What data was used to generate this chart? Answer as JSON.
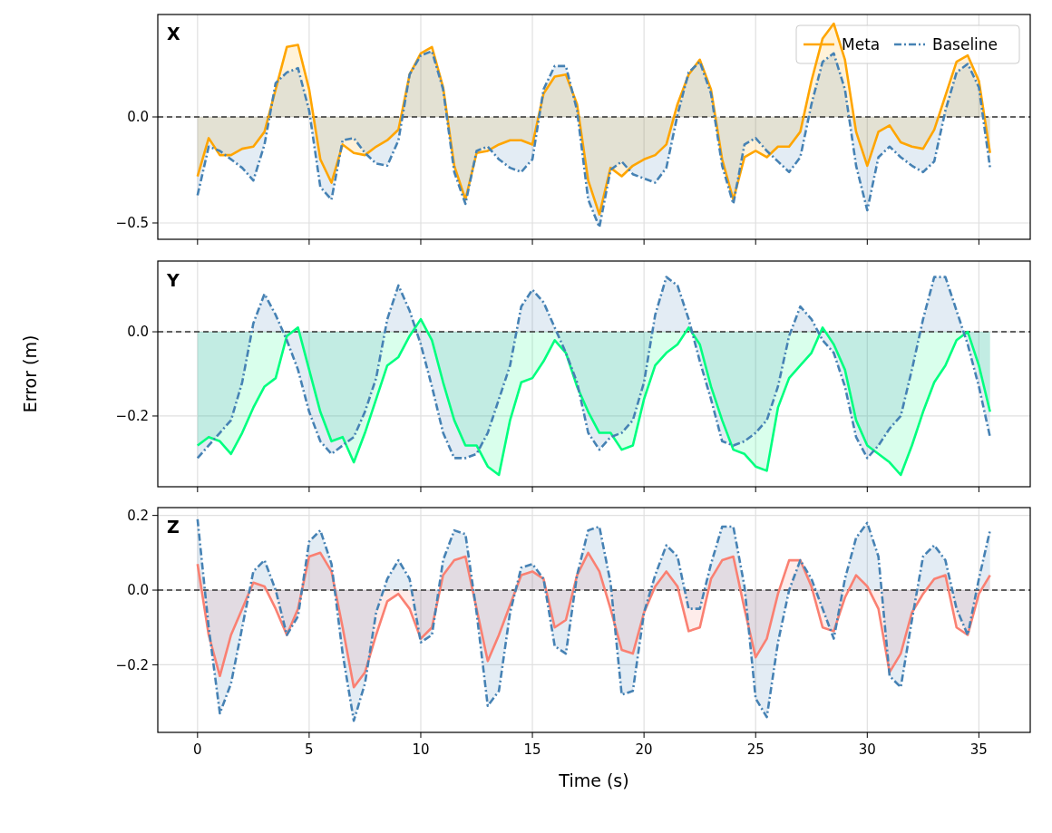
{
  "chart_data": [
    {
      "type": "area",
      "title": "X",
      "x": [
        0,
        0.5,
        1,
        1.5,
        2,
        2.5,
        3,
        3.5,
        4,
        4.5,
        5,
        5.5,
        6,
        6.5,
        7,
        7.5,
        8,
        8.5,
        9,
        9.5,
        10,
        10.5,
        11,
        11.5,
        12,
        12.5,
        13,
        13.5,
        14,
        14.5,
        15,
        15.5,
        16,
        16.5,
        17,
        17.5,
        18,
        18.5,
        19,
        19.5,
        20,
        20.5,
        21,
        21.5,
        22,
        22.5,
        23,
        23.5,
        24,
        24.5,
        25,
        25.5,
        26,
        26.5,
        27,
        27.5,
        28,
        28.5,
        29,
        29.5,
        30,
        30.5,
        31,
        31.5,
        32,
        32.5,
        33,
        33.5,
        34,
        34.5,
        35,
        35.5
      ],
      "series": [
        {
          "name": "Meta",
          "color": "#ffa500",
          "line_style": "solid",
          "values": [
            -0.28,
            -0.1,
            -0.18,
            -0.18,
            -0.15,
            -0.14,
            -0.07,
            0.13,
            0.33,
            0.34,
            0.13,
            -0.2,
            -0.31,
            -0.13,
            -0.17,
            -0.18,
            -0.14,
            -0.11,
            -0.06,
            0.2,
            0.3,
            0.33,
            0.14,
            -0.23,
            -0.39,
            -0.17,
            -0.16,
            -0.13,
            -0.11,
            -0.11,
            -0.13,
            0.11,
            0.19,
            0.2,
            0.06,
            -0.3,
            -0.46,
            -0.24,
            -0.28,
            -0.23,
            -0.2,
            -0.18,
            -0.13,
            0.06,
            0.2,
            0.27,
            0.13,
            -0.2,
            -0.39,
            -0.19,
            -0.16,
            -0.19,
            -0.14,
            -0.14,
            -0.07,
            0.17,
            0.37,
            0.44,
            0.27,
            -0.07,
            -0.23,
            -0.07,
            -0.04,
            -0.12,
            -0.14,
            -0.15,
            -0.06,
            0.1,
            0.26,
            0.29,
            0.17,
            -0.17
          ]
        },
        {
          "name": "Baseline",
          "color": "#4682b4",
          "line_style": "dashdot",
          "values": [
            -0.37,
            -0.14,
            -0.16,
            -0.2,
            -0.24,
            -0.3,
            -0.13,
            0.16,
            0.21,
            0.23,
            0.03,
            -0.33,
            -0.39,
            -0.11,
            -0.1,
            -0.17,
            -0.22,
            -0.23,
            -0.11,
            0.2,
            0.29,
            0.31,
            0.13,
            -0.26,
            -0.41,
            -0.16,
            -0.14,
            -0.2,
            -0.24,
            -0.26,
            -0.2,
            0.13,
            0.24,
            0.24,
            0.03,
            -0.39,
            -0.52,
            -0.25,
            -0.21,
            -0.27,
            -0.29,
            -0.31,
            -0.24,
            0.01,
            0.21,
            0.26,
            0.11,
            -0.23,
            -0.41,
            -0.13,
            -0.1,
            -0.16,
            -0.21,
            -0.26,
            -0.19,
            0.06,
            0.26,
            0.3,
            0.13,
            -0.23,
            -0.44,
            -0.19,
            -0.14,
            -0.19,
            -0.23,
            -0.26,
            -0.21,
            0.03,
            0.21,
            0.25,
            0.14,
            -0.24
          ]
        }
      ],
      "xlim": [
        -1.78,
        37.3
      ],
      "xticks": [
        0,
        5,
        10,
        15,
        20,
        25,
        30,
        35
      ],
      "ylim": [
        -0.577,
        0.483
      ],
      "yticks": [
        {
          "value": 0,
          "label": "0.0"
        },
        {
          "value": -0.5,
          "label": "−0.5"
        }
      ],
      "tick_labels": "y",
      "grid": true,
      "legend": "top right",
      "ref_lines": [
        {
          "axis": "y",
          "value": 0,
          "color": "#333333",
          "line_style": "dashed"
        }
      ]
    },
    {
      "type": "area",
      "title": "Y",
      "ylabel": "Error (m)",
      "x": [
        0,
        0.5,
        1,
        1.5,
        2,
        2.5,
        3,
        3.5,
        4,
        4.5,
        5,
        5.5,
        6,
        6.5,
        7,
        7.5,
        8,
        8.5,
        9,
        9.5,
        10,
        10.5,
        11,
        11.5,
        12,
        12.5,
        13,
        13.5,
        14,
        14.5,
        15,
        15.5,
        16,
        16.5,
        17,
        17.5,
        18,
        18.5,
        19,
        19.5,
        20,
        20.5,
        21,
        21.5,
        22,
        22.5,
        23,
        23.5,
        24,
        24.5,
        25,
        25.5,
        26,
        26.5,
        27,
        27.5,
        28,
        28.5,
        29,
        29.5,
        30,
        30.5,
        31,
        31.5,
        32,
        32.5,
        33,
        33.5,
        34,
        34.5,
        35,
        35.5
      ],
      "series": [
        {
          "color": "#00ff7f",
          "line_style": "solid",
          "values": [
            -0.27,
            -0.25,
            -0.26,
            -0.29,
            -0.24,
            -0.18,
            -0.13,
            -0.11,
            -0.01,
            0.01,
            -0.09,
            -0.19,
            -0.26,
            -0.25,
            -0.31,
            -0.24,
            -0.16,
            -0.08,
            -0.06,
            -0.01,
            0.03,
            -0.02,
            -0.12,
            -0.21,
            -0.27,
            -0.27,
            -0.32,
            -0.34,
            -0.21,
            -0.12,
            -0.11,
            -0.07,
            -0.02,
            -0.05,
            -0.13,
            -0.19,
            -0.24,
            -0.24,
            -0.28,
            -0.27,
            -0.16,
            -0.08,
            -0.05,
            -0.03,
            0.01,
            -0.03,
            -0.13,
            -0.21,
            -0.28,
            -0.29,
            -0.32,
            -0.33,
            -0.18,
            -0.11,
            -0.08,
            -0.05,
            0.01,
            -0.03,
            -0.09,
            -0.21,
            -0.27,
            -0.29,
            -0.31,
            -0.34,
            -0.27,
            -0.19,
            -0.12,
            -0.08,
            -0.02,
            0.0,
            -0.08,
            -0.19
          ]
        },
        {
          "color": "#4682b4",
          "line_style": "dashdot",
          "values": [
            -0.3,
            -0.27,
            -0.24,
            -0.21,
            -0.12,
            0.02,
            0.09,
            0.04,
            -0.02,
            -0.09,
            -0.19,
            -0.26,
            -0.29,
            -0.27,
            -0.25,
            -0.19,
            -0.11,
            0.03,
            0.11,
            0.05,
            -0.03,
            -0.13,
            -0.24,
            -0.3,
            -0.3,
            -0.29,
            -0.24,
            -0.16,
            -0.08,
            0.06,
            0.1,
            0.07,
            0.01,
            -0.05,
            -0.12,
            -0.24,
            -0.28,
            -0.25,
            -0.24,
            -0.21,
            -0.12,
            0.04,
            0.13,
            0.11,
            0.03,
            -0.07,
            -0.16,
            -0.26,
            -0.27,
            -0.26,
            -0.24,
            -0.21,
            -0.13,
            -0.01,
            0.06,
            0.03,
            -0.02,
            -0.05,
            -0.13,
            -0.25,
            -0.3,
            -0.27,
            -0.23,
            -0.2,
            -0.09,
            0.03,
            0.13,
            0.13,
            0.05,
            -0.03,
            -0.13,
            -0.25
          ]
        }
      ],
      "xlim": [
        -1.78,
        37.3
      ],
      "xticks": [
        0,
        5,
        10,
        15,
        20,
        25,
        30,
        35
      ],
      "ylim": [
        -0.368,
        0.168
      ],
      "yticks": [
        {
          "value": 0,
          "label": "0.0"
        },
        {
          "value": -0.2,
          "label": "−0.2"
        }
      ],
      "tick_labels": "y",
      "grid": true,
      "ref_lines": [
        {
          "axis": "y",
          "value": 0,
          "color": "#333333",
          "line_style": "dashed"
        }
      ]
    },
    {
      "type": "area",
      "title": "Z",
      "xlabel": "Time (s)",
      "x": [
        0,
        0.5,
        1,
        1.5,
        2,
        2.5,
        3,
        3.5,
        4,
        4.5,
        5,
        5.5,
        6,
        6.5,
        7,
        7.5,
        8,
        8.5,
        9,
        9.5,
        10,
        10.5,
        11,
        11.5,
        12,
        12.5,
        13,
        13.5,
        14,
        14.5,
        15,
        15.5,
        16,
        16.5,
        17,
        17.5,
        18,
        18.5,
        19,
        19.5,
        20,
        20.5,
        21,
        21.5,
        22,
        22.5,
        23,
        23.5,
        24,
        24.5,
        25,
        25.5,
        26,
        26.5,
        27,
        27.5,
        28,
        28.5,
        29,
        29.5,
        30,
        30.5,
        31,
        31.5,
        32,
        32.5,
        33,
        33.5,
        34,
        34.5,
        35,
        35.5
      ],
      "series": [
        {
          "color": "#fa8072",
          "line_style": "solid",
          "values": [
            0.07,
            -0.12,
            -0.23,
            -0.12,
            -0.05,
            0.02,
            0.01,
            -0.05,
            -0.12,
            -0.05,
            0.09,
            0.1,
            0.05,
            -0.1,
            -0.26,
            -0.22,
            -0.12,
            -0.03,
            -0.01,
            -0.05,
            -0.13,
            -0.1,
            0.04,
            0.08,
            0.09,
            -0.05,
            -0.19,
            -0.12,
            -0.04,
            0.04,
            0.05,
            0.03,
            -0.1,
            -0.08,
            0.04,
            0.1,
            0.05,
            -0.05,
            -0.16,
            -0.17,
            -0.06,
            0.01,
            0.05,
            0.01,
            -0.11,
            -0.1,
            0.03,
            0.08,
            0.09,
            -0.05,
            -0.18,
            -0.13,
            -0.01,
            0.08,
            0.08,
            0.01,
            -0.1,
            -0.11,
            -0.02,
            0.04,
            0.01,
            -0.05,
            -0.22,
            -0.17,
            -0.06,
            -0.01,
            0.03,
            0.04,
            -0.1,
            -0.12,
            -0.01,
            0.04
          ]
        },
        {
          "color": "#4682b4",
          "line_style": "dashdot",
          "values": [
            0.19,
            -0.1,
            -0.33,
            -0.25,
            -0.1,
            0.05,
            0.08,
            0.0,
            -0.12,
            -0.07,
            0.13,
            0.16,
            0.07,
            -0.17,
            -0.35,
            -0.25,
            -0.06,
            0.03,
            0.08,
            0.03,
            -0.14,
            -0.12,
            0.08,
            0.16,
            0.15,
            -0.06,
            -0.31,
            -0.27,
            -0.06,
            0.06,
            0.07,
            0.03,
            -0.15,
            -0.17,
            0.04,
            0.16,
            0.17,
            0.02,
            -0.28,
            -0.27,
            -0.06,
            0.04,
            0.12,
            0.09,
            -0.05,
            -0.05,
            0.07,
            0.17,
            0.17,
            0.01,
            -0.29,
            -0.34,
            -0.14,
            0.0,
            0.08,
            0.03,
            -0.05,
            -0.13,
            0.03,
            0.14,
            0.18,
            0.09,
            -0.23,
            -0.26,
            -0.08,
            0.09,
            0.12,
            0.08,
            -0.05,
            -0.12,
            0.03,
            0.16
          ]
        }
      ],
      "xlim": [
        -1.78,
        37.3
      ],
      "xticks": [
        0,
        5,
        10,
        15,
        20,
        25,
        30,
        35
      ],
      "ylim": [
        -0.381,
        0.221
      ],
      "yticks": [
        {
          "value": 0.2,
          "label": "0.2"
        },
        {
          "value": 0,
          "label": "0.0"
        },
        {
          "value": -0.2,
          "label": "−0.2"
        }
      ],
      "grid": true,
      "ref_lines": [
        {
          "axis": "y",
          "value": 0,
          "color": "#333333",
          "line_style": "dashed"
        }
      ]
    }
  ]
}
